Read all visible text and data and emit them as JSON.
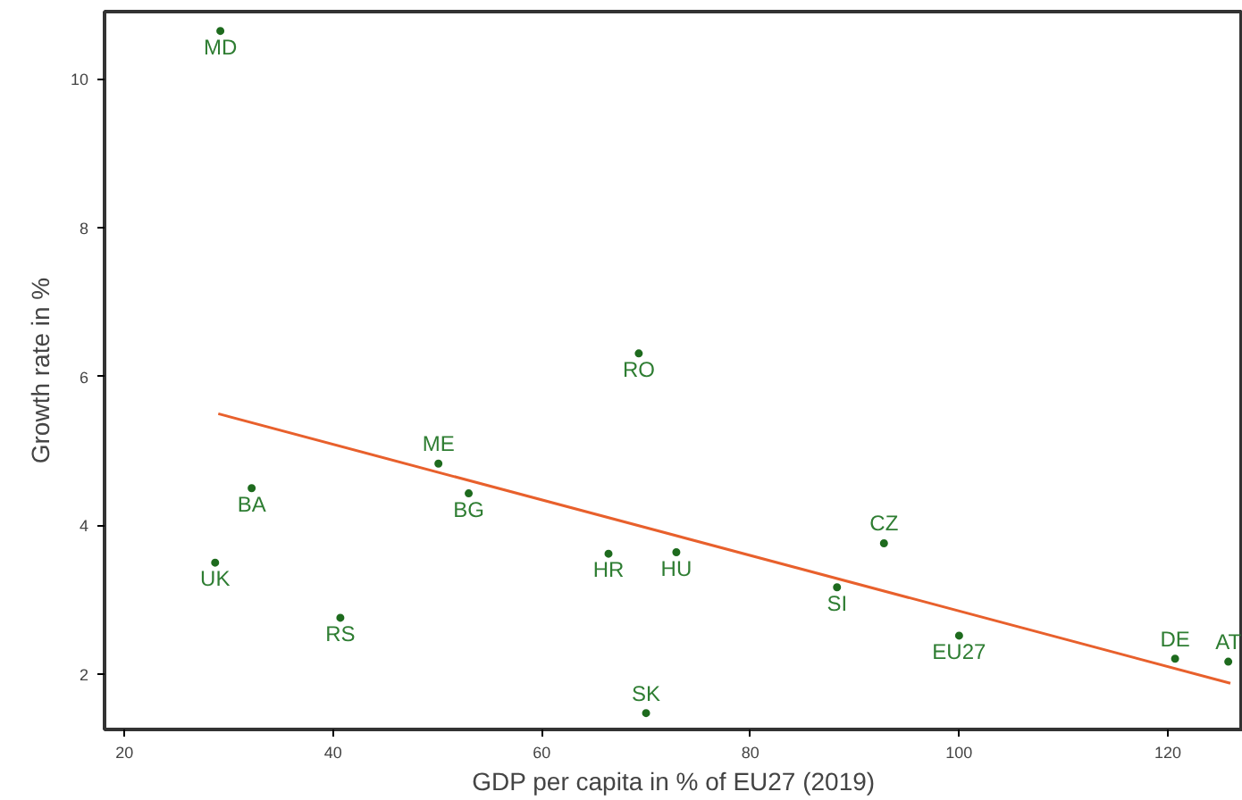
{
  "chart_data": {
    "type": "scatter",
    "xlabel": "GDP per capita in % of EU27 (2019)",
    "ylabel": "Growth rate in %",
    "xlim": [
      18.1,
      127.2
    ],
    "ylim": [
      1.26,
      10.9
    ],
    "xticks": [
      20,
      40,
      60,
      80,
      100,
      120
    ],
    "yticks": [
      2,
      4,
      6,
      8,
      10
    ],
    "grid": false,
    "marker": "circle",
    "series": [
      {
        "color": "#1e6b1e",
        "x": [
          29.2,
          32.2,
          28.7,
          40.7,
          50.1,
          53.0,
          69.3,
          66.4,
          72.9,
          70.0,
          88.3,
          92.8,
          100,
          120.7,
          125.8
        ],
        "values": [
          10.64,
          4.5,
          3.5,
          2.76,
          4.83,
          4.43,
          6.31,
          3.62,
          3.64,
          1.48,
          3.17,
          3.76,
          2.52,
          2.21,
          2.17
        ],
        "value_labels": [
          "MD",
          "BA",
          "UK",
          "RS",
          "ME",
          "BG",
          "RO",
          "HR",
          "HU",
          "SK",
          "SI",
          "CZ",
          "EU27",
          "DE",
          "AT"
        ]
      },
      {
        "type": "line",
        "marker": "none",
        "color": "#e8602c",
        "x": [
          29,
          126
        ],
        "values": [
          5.5,
          1.88
        ]
      }
    ]
  }
}
